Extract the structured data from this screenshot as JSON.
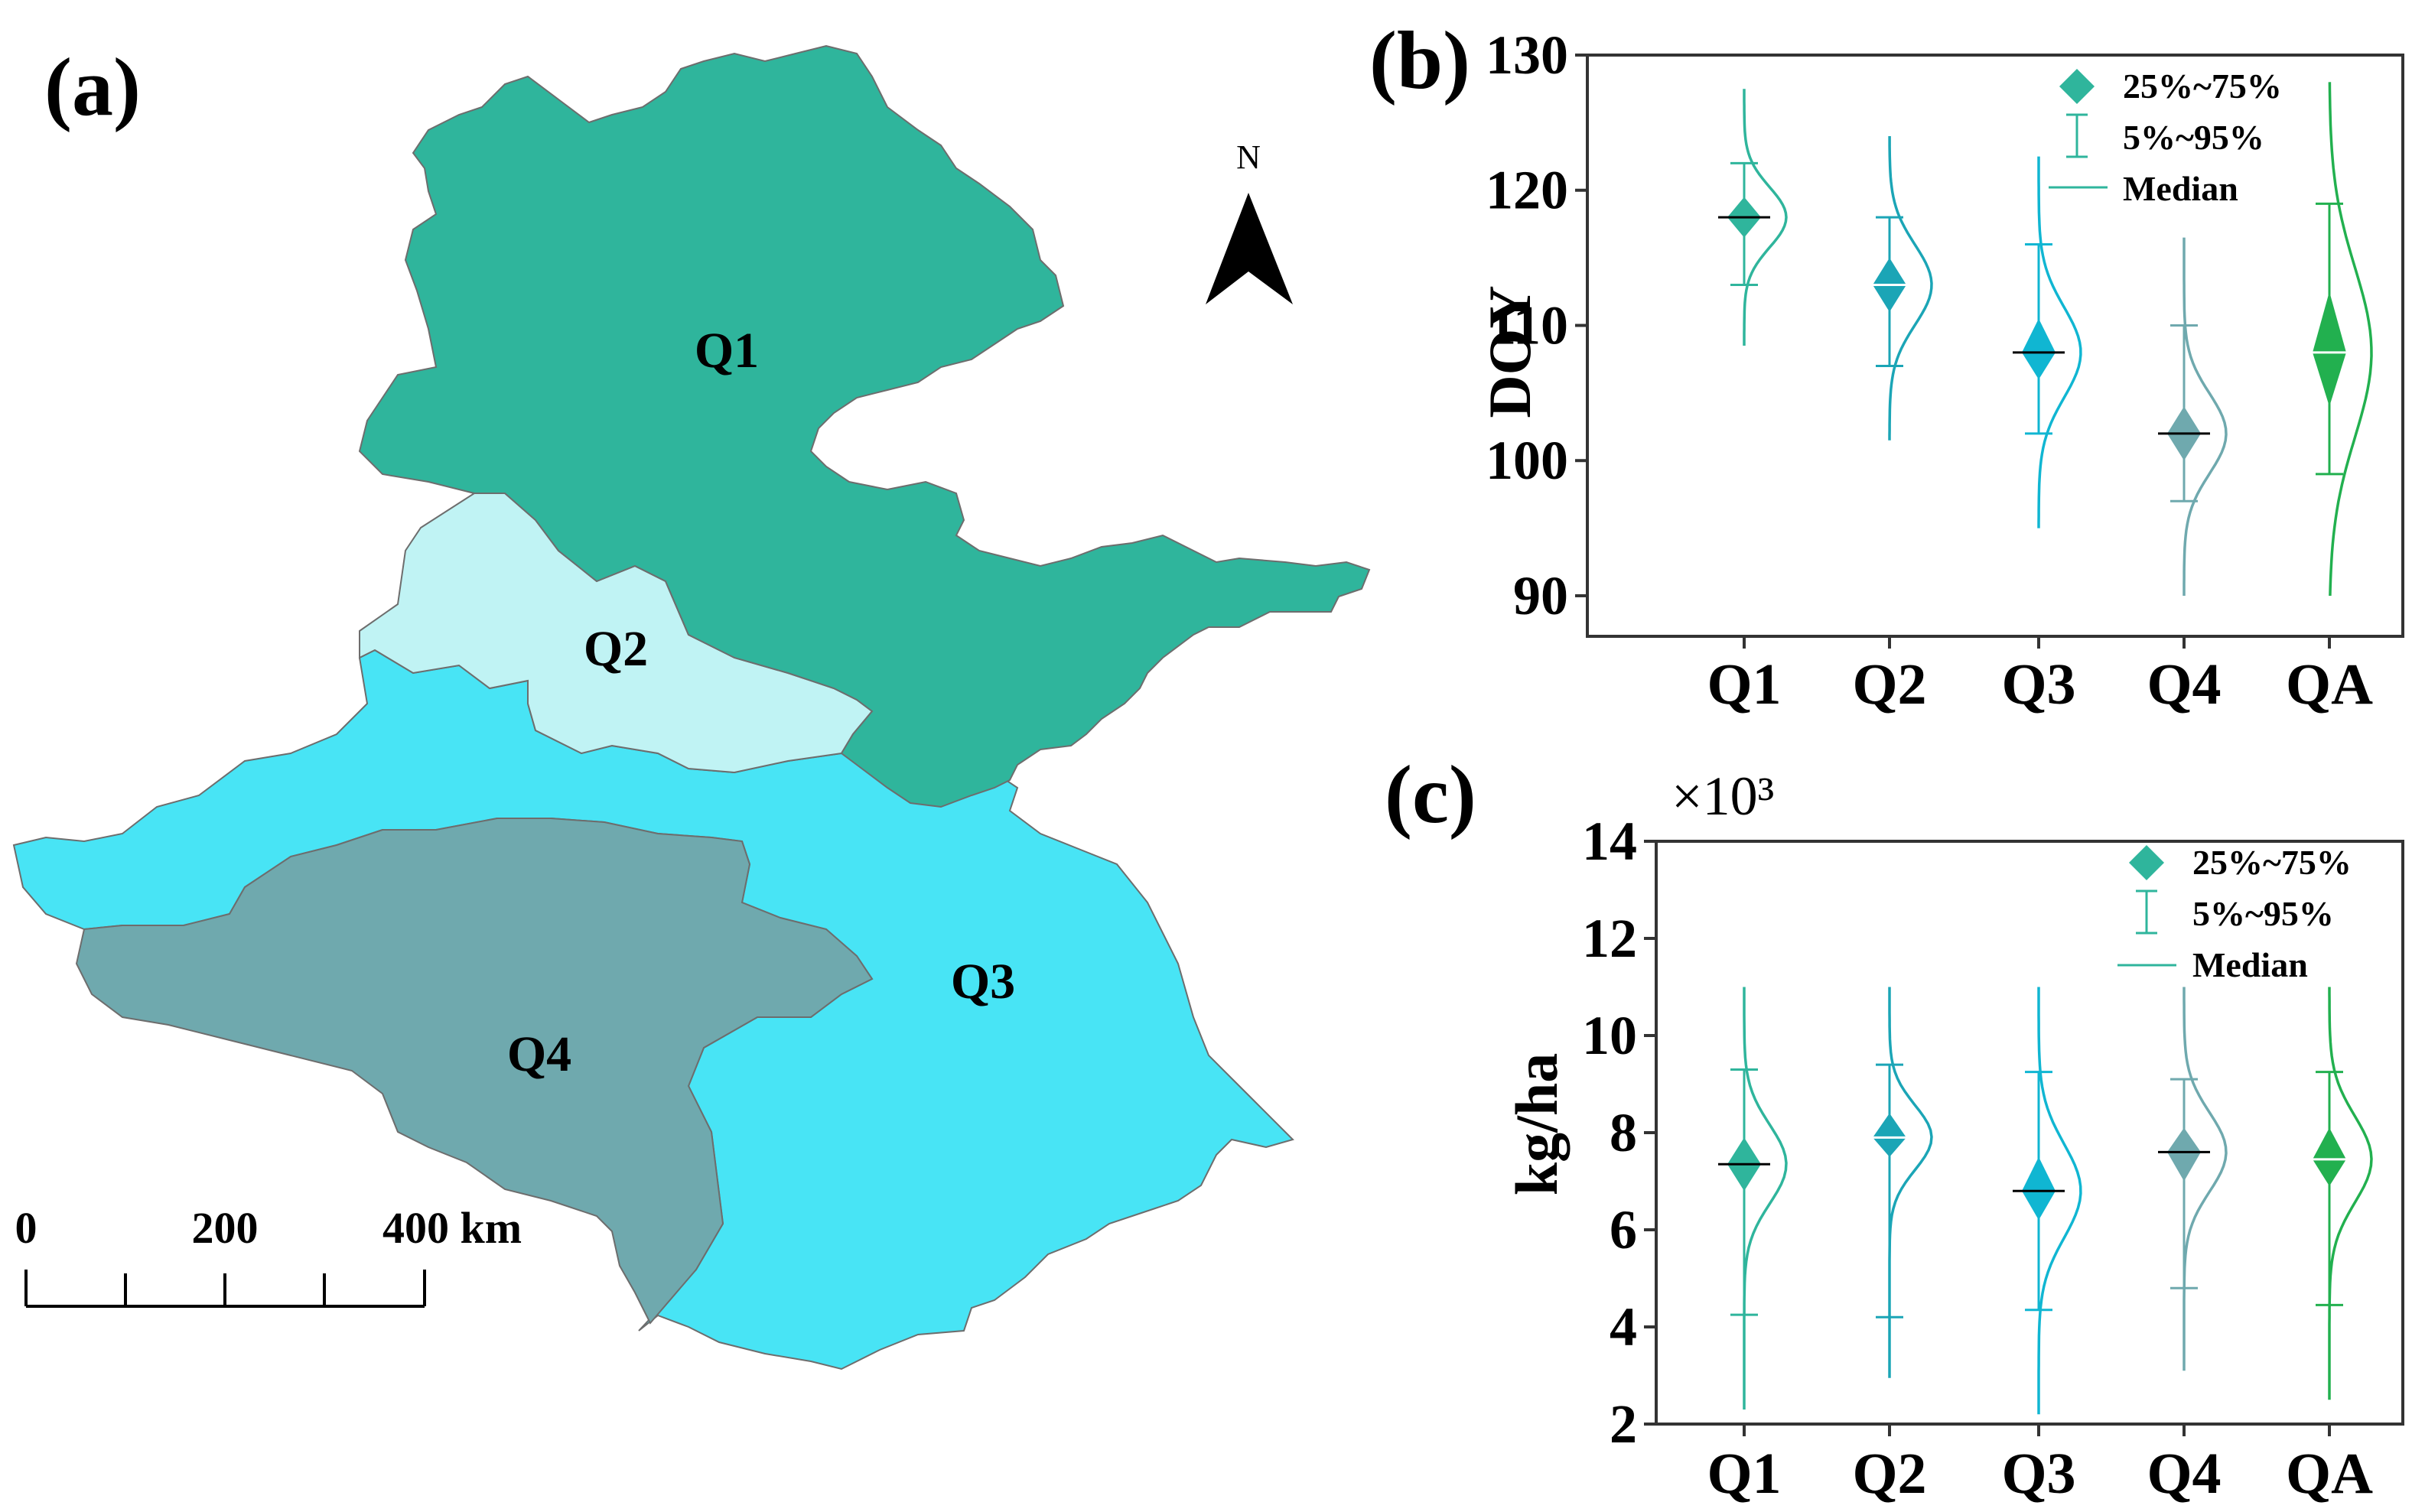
{
  "panel_a": {
    "label": "(a)",
    "regions": [
      {
        "name": "Q1",
        "color": "#2fb59c"
      },
      {
        "name": "Q2",
        "color": "#c0f3f4"
      },
      {
        "name": "Q3",
        "color": "#48e4f5"
      },
      {
        "name": "Q4",
        "color": "#6fa9ae"
      }
    ],
    "north_label": "N",
    "scale_bar": {
      "labels": [
        "0",
        "200",
        "400 km"
      ]
    }
  },
  "chart_data": [
    {
      "panel": "(b)",
      "type": "violin",
      "ylabel": "DOY",
      "ylim": [
        87,
        130
      ],
      "yticks": [
        90,
        100,
        110,
        120,
        130
      ],
      "categories": [
        "Q1",
        "Q2",
        "Q3",
        "Q4",
        "QA"
      ],
      "colors": [
        "#2fb59c",
        "#1ba5b6",
        "#10b6d2",
        "#6fa9ae",
        "#22b04f"
      ],
      "median_line_colors": [
        "#000000",
        "#ffffff",
        "#000000",
        "#000000",
        "#ffffff"
      ],
      "median": [
        118,
        113,
        108,
        102,
        108
      ],
      "q25": [
        116.5,
        111,
        106,
        100,
        104
      ],
      "q75": [
        119.5,
        115,
        110.5,
        104,
        112.5
      ],
      "p5": [
        113,
        107,
        102,
        97,
        99
      ],
      "p95": [
        122,
        118,
        116,
        110,
        119
      ],
      "dist_min": [
        108.5,
        101.5,
        95,
        90,
        90
      ],
      "dist_max": [
        127.5,
        124,
        122.5,
        116.5,
        128
      ],
      "legend": [
        "25%~75%",
        "5%~95%",
        "Median"
      ],
      "legend_position": "top-right"
    },
    {
      "panel": "(c)",
      "type": "violin",
      "ylabel": "kg/ha",
      "multiplier": "×10³",
      "ylim": [
        2,
        14
      ],
      "yticks": [
        2,
        4,
        6,
        8,
        10,
        12,
        14
      ],
      "categories": [
        "Q1",
        "Q2",
        "Q3",
        "Q4",
        "QA"
      ],
      "colors": [
        "#2fb59c",
        "#1ba5b6",
        "#10b6d2",
        "#6fa9ae",
        "#22b04f"
      ],
      "median_line_colors": [
        "#000000",
        "#ffffff",
        "#000000",
        "#000000",
        "#ffffff"
      ],
      "median": [
        7.35,
        7.9,
        6.8,
        7.6,
        7.45
      ],
      "q25": [
        6.8,
        7.5,
        6.2,
        7.0,
        6.9
      ],
      "q75": [
        7.9,
        8.4,
        7.5,
        8.1,
        8.1
      ],
      "p5": [
        4.25,
        4.2,
        4.35,
        4.8,
        4.45
      ],
      "p95": [
        9.3,
        9.4,
        9.25,
        9.1,
        9.25
      ],
      "dist_min": [
        2.3,
        2.95,
        2.2,
        3.1,
        2.5
      ],
      "dist_max": [
        11,
        11,
        11,
        11,
        11
      ],
      "legend": [
        "25%~75%",
        "5%~95%",
        "Median"
      ],
      "legend_position": "top-right"
    }
  ]
}
